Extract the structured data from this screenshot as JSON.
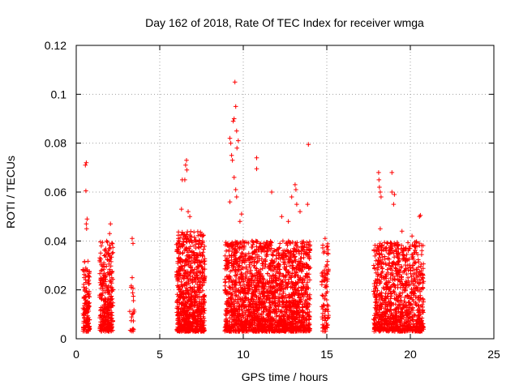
{
  "chart_data": {
    "type": "scatter",
    "title": "Day 162 of 2018, Rate Of TEC Index for receiver wmga",
    "xlabel": "GPS time / hours",
    "ylabel": "ROTI / TECUs",
    "xlim": [
      0,
      25
    ],
    "ylim": [
      0,
      0.12
    ],
    "xticks": [
      0,
      5,
      10,
      15,
      20,
      25
    ],
    "yticks": [
      0,
      0.02,
      0.04,
      0.06,
      0.08,
      0.1,
      0.12
    ],
    "xtick_labels": [
      "0",
      "5",
      "10",
      "15",
      "20",
      "25"
    ],
    "ytick_labels": [
      "0",
      "0.02",
      "0.04",
      "0.06",
      "0.08",
      "0.1",
      "0.12"
    ],
    "grid": true,
    "marker": "+",
    "color": "#ff0000",
    "clusters": [
      {
        "x_range": [
          0.4,
          0.8
        ],
        "y_max": 0.032,
        "count": 140
      },
      {
        "x_range": [
          1.4,
          2.2
        ],
        "y_max": 0.04,
        "count": 300
      },
      {
        "x_range": [
          3.2,
          3.5
        ],
        "y_max": 0.022,
        "count": 20
      },
      {
        "x_range": [
          6.0,
          7.7
        ],
        "y_max": 0.044,
        "count": 800
      },
      {
        "x_range": [
          8.9,
          14.0
        ],
        "y_max": 0.04,
        "count": 2000
      },
      {
        "x_range": [
          14.7,
          15.1
        ],
        "y_max": 0.04,
        "count": 90
      },
      {
        "x_range": [
          17.8,
          20.8
        ],
        "y_max": 0.04,
        "count": 1000
      }
    ],
    "outliers": [
      {
        "x": 0.55,
        "y": 0.071
      },
      {
        "x": 0.6,
        "y": 0.072
      },
      {
        "x": 0.58,
        "y": 0.0605
      },
      {
        "x": 0.65,
        "y": 0.049
      },
      {
        "x": 0.62,
        "y": 0.045
      },
      {
        "x": 0.6,
        "y": 0.047
      },
      {
        "x": 2.05,
        "y": 0.047
      },
      {
        "x": 2.0,
        "y": 0.043
      },
      {
        "x": 3.35,
        "y": 0.041
      },
      {
        "x": 3.4,
        "y": 0.039
      },
      {
        "x": 3.35,
        "y": 0.025
      },
      {
        "x": 6.3,
        "y": 0.053
      },
      {
        "x": 6.35,
        "y": 0.065
      },
      {
        "x": 6.5,
        "y": 0.065
      },
      {
        "x": 6.55,
        "y": 0.071
      },
      {
        "x": 6.6,
        "y": 0.073
      },
      {
        "x": 6.62,
        "y": 0.069
      },
      {
        "x": 6.7,
        "y": 0.052
      },
      {
        "x": 6.8,
        "y": 0.05
      },
      {
        "x": 9.2,
        "y": 0.082
      },
      {
        "x": 9.25,
        "y": 0.08
      },
      {
        "x": 9.3,
        "y": 0.075
      },
      {
        "x": 9.35,
        "y": 0.073
      },
      {
        "x": 9.4,
        "y": 0.089
      },
      {
        "x": 9.45,
        "y": 0.09
      },
      {
        "x": 9.5,
        "y": 0.105
      },
      {
        "x": 9.55,
        "y": 0.095
      },
      {
        "x": 9.6,
        "y": 0.085
      },
      {
        "x": 9.62,
        "y": 0.078
      },
      {
        "x": 9.7,
        "y": 0.081
      },
      {
        "x": 9.45,
        "y": 0.066
      },
      {
        "x": 9.55,
        "y": 0.061
      },
      {
        "x": 9.6,
        "y": 0.058
      },
      {
        "x": 9.2,
        "y": 0.056
      },
      {
        "x": 9.8,
        "y": 0.048
      },
      {
        "x": 9.9,
        "y": 0.051
      },
      {
        "x": 10.8,
        "y": 0.074
      },
      {
        "x": 10.8,
        "y": 0.0695
      },
      {
        "x": 11.7,
        "y": 0.06
      },
      {
        "x": 12.3,
        "y": 0.05
      },
      {
        "x": 13.1,
        "y": 0.063
      },
      {
        "x": 13.15,
        "y": 0.061
      },
      {
        "x": 13.2,
        "y": 0.055
      },
      {
        "x": 13.4,
        "y": 0.052
      },
      {
        "x": 13.9,
        "y": 0.0795
      },
      {
        "x": 13.85,
        "y": 0.055
      },
      {
        "x": 12.9,
        "y": 0.058
      },
      {
        "x": 12.7,
        "y": 0.048
      },
      {
        "x": 14.9,
        "y": 0.041
      },
      {
        "x": 15.0,
        "y": 0.035
      },
      {
        "x": 18.1,
        "y": 0.068
      },
      {
        "x": 18.12,
        "y": 0.065
      },
      {
        "x": 18.15,
        "y": 0.062
      },
      {
        "x": 18.2,
        "y": 0.06
      },
      {
        "x": 18.25,
        "y": 0.058
      },
      {
        "x": 18.2,
        "y": 0.045
      },
      {
        "x": 18.9,
        "y": 0.068
      },
      {
        "x": 18.9,
        "y": 0.06
      },
      {
        "x": 19.0,
        "y": 0.055
      },
      {
        "x": 19.05,
        "y": 0.059
      },
      {
        "x": 20.6,
        "y": 0.0505
      },
      {
        "x": 20.55,
        "y": 0.05
      },
      {
        "x": 19.5,
        "y": 0.044
      },
      {
        "x": 20.1,
        "y": 0.042
      }
    ]
  }
}
